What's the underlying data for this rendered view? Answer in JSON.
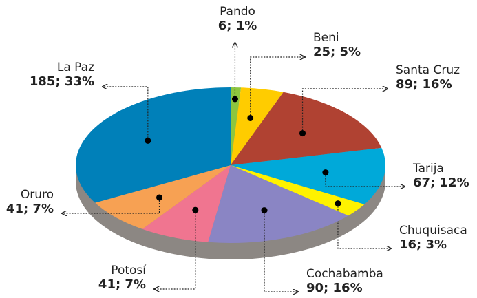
{
  "chart_data": {
    "type": "pie",
    "categories": [
      "Pando",
      "Beni",
      "Santa Cruz",
      "Tarija",
      "Chuquisaca",
      "Cochabamba",
      "Potosí",
      "Oruro",
      "La Paz"
    ],
    "values": [
      6,
      25,
      89,
      67,
      16,
      90,
      41,
      41,
      185
    ],
    "value_labels": [
      "6; 1%",
      "25; 5%",
      "89; 16%",
      "67; 12%",
      "16; 3%",
      "90; 16%",
      "41; 7%",
      "41; 7%",
      "185; 33%"
    ],
    "colors": [
      "#8dc63f",
      "#ffcc00",
      "#b04232",
      "#00a9d9",
      "#fff200",
      "#8a85c4",
      "#f07590",
      "#f7a153",
      "#0080b9"
    ]
  }
}
